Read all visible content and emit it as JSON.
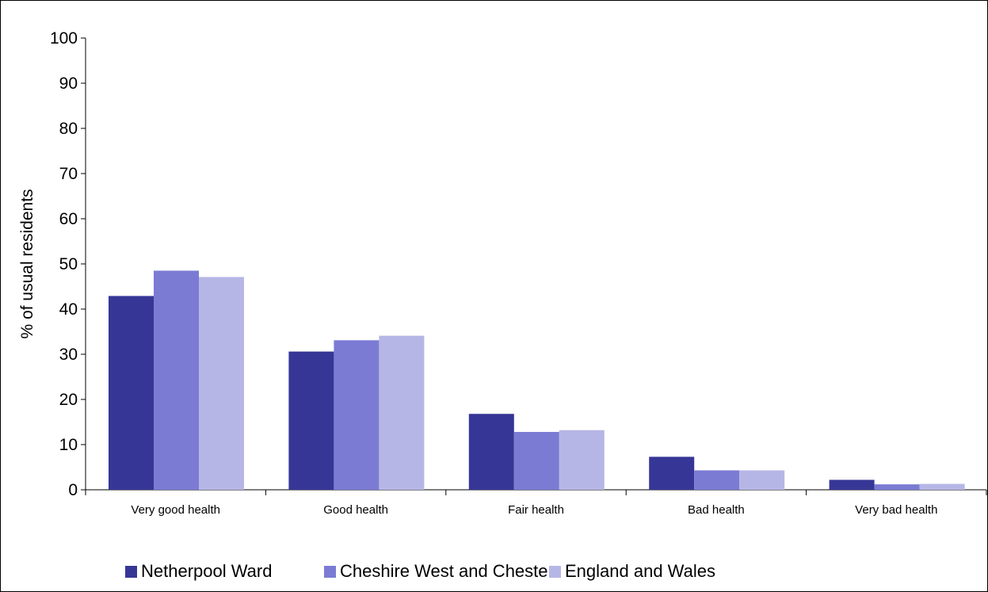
{
  "chart_data": {
    "type": "bar",
    "categories": [
      "Very good health",
      "Good health",
      "Fair health",
      "Bad health",
      "Very bad health"
    ],
    "series": [
      {
        "name": "Netherpool Ward",
        "color": "#363696",
        "values": [
          42.9,
          30.6,
          16.8,
          7.3,
          2.2
        ]
      },
      {
        "name": "Cheshire West and Chester",
        "color": "#7b7bd4",
        "values": [
          48.5,
          33.1,
          12.8,
          4.3,
          1.2
        ]
      },
      {
        "name": "England and Wales",
        "color": "#b6b6e6",
        "values": [
          47.1,
          34.1,
          13.2,
          4.3,
          1.3
        ]
      }
    ],
    "ylabel": "% of usual residents",
    "xlabel": "",
    "ylim": [
      0,
      100
    ],
    "yticks": [
      0,
      10,
      20,
      30,
      40,
      50,
      60,
      70,
      80,
      90,
      100
    ],
    "legend_position": "bottom",
    "grid": false
  }
}
